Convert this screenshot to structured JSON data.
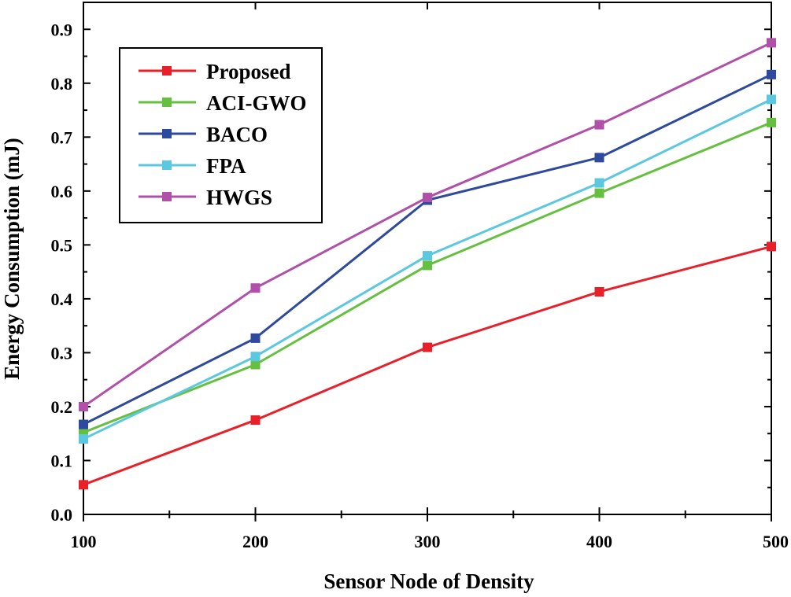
{
  "chart_data": {
    "type": "line",
    "title": "",
    "xlabel": "Sensor Node of Density",
    "ylabel": "Energy Consumption (mJ)",
    "x": [
      100,
      200,
      300,
      400,
      500
    ],
    "xlim": [
      100,
      500
    ],
    "ylim": [
      0.0,
      0.95
    ],
    "xticks": [
      "100",
      "200",
      "300",
      "400",
      "500"
    ],
    "yticks": [
      "0.0",
      "0.1",
      "0.2",
      "0.3",
      "0.4",
      "0.5",
      "0.6",
      "0.7",
      "0.8",
      "0.9"
    ],
    "legend_position": "top-left",
    "grid": false,
    "series": [
      {
        "name": "Proposed",
        "color": "#e8202a",
        "values": [
          0.055,
          0.175,
          0.31,
          0.413,
          0.497
        ]
      },
      {
        "name": "ACI-GWO",
        "color": "#66c040",
        "values": [
          0.152,
          0.278,
          0.462,
          0.596,
          0.727
        ]
      },
      {
        "name": "BACO",
        "color": "#2e4a9e",
        "values": [
          0.167,
          0.327,
          0.583,
          0.662,
          0.816
        ]
      },
      {
        "name": "FPA",
        "color": "#5cc8e0",
        "values": [
          0.14,
          0.293,
          0.48,
          0.615,
          0.77
        ]
      },
      {
        "name": "HWGS",
        "color": "#b050a8",
        "values": [
          0.2,
          0.42,
          0.588,
          0.723,
          0.875
        ]
      }
    ]
  }
}
